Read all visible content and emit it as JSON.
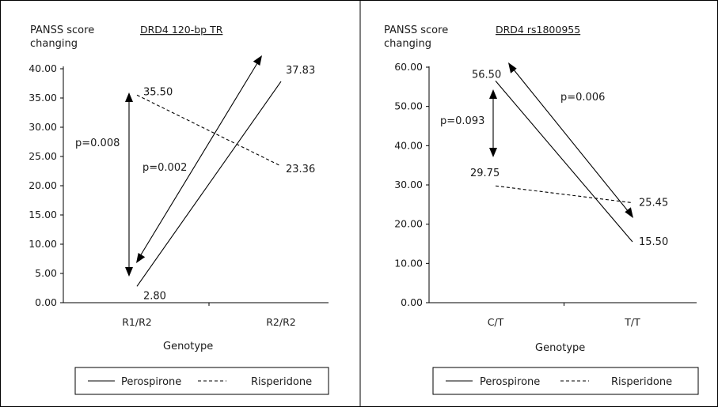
{
  "chart_data": [
    {
      "type": "line",
      "title": "DRD4 120-bp TR",
      "ylabel": "PANSS score changing",
      "xlabel": "Genotype",
      "categories": [
        "R1/R2",
        "R2/R2"
      ],
      "ylim": [
        0,
        40
      ],
      "yticks": [
        "0.00",
        "5.00",
        "10.00",
        "15.00",
        "20.00",
        "25.00",
        "30.00",
        "35.00",
        "40.00"
      ],
      "series": [
        {
          "name": "Perospirone",
          "values": [
            2.8,
            37.83
          ],
          "labels": [
            "2.80",
            "37.83"
          ],
          "style": "solid"
        },
        {
          "name": "Risperidone",
          "values": [
            35.5,
            23.36
          ],
          "labels": [
            "35.50",
            "23.36"
          ],
          "style": "dashed"
        }
      ],
      "annotations": [
        "p=0.008",
        "p=0.002"
      ],
      "legend": [
        "Perospirone",
        "Risperidone"
      ],
      "legend_position": "bottom"
    },
    {
      "type": "line",
      "title": "DRD4 rs1800955",
      "ylabel": "PANSS score changing",
      "xlabel": "Genotype",
      "categories": [
        "C/T",
        "T/T"
      ],
      "ylim": [
        0,
        60
      ],
      "yticks": [
        "0.00",
        "10.00",
        "20.00",
        "30.00",
        "40.00",
        "50.00",
        "60.00"
      ],
      "series": [
        {
          "name": "Perospirone",
          "values": [
            56.5,
            15.5
          ],
          "labels": [
            "56.50",
            "15.50"
          ],
          "style": "solid"
        },
        {
          "name": "Risperidone",
          "values": [
            29.75,
            25.45
          ],
          "labels": [
            "29.75",
            "25.45"
          ],
          "style": "dashed"
        }
      ],
      "annotations": [
        "p=0.093",
        "p=0.006"
      ],
      "legend": [
        "Perospirone",
        "Risperidone"
      ],
      "legend_position": "bottom"
    }
  ]
}
